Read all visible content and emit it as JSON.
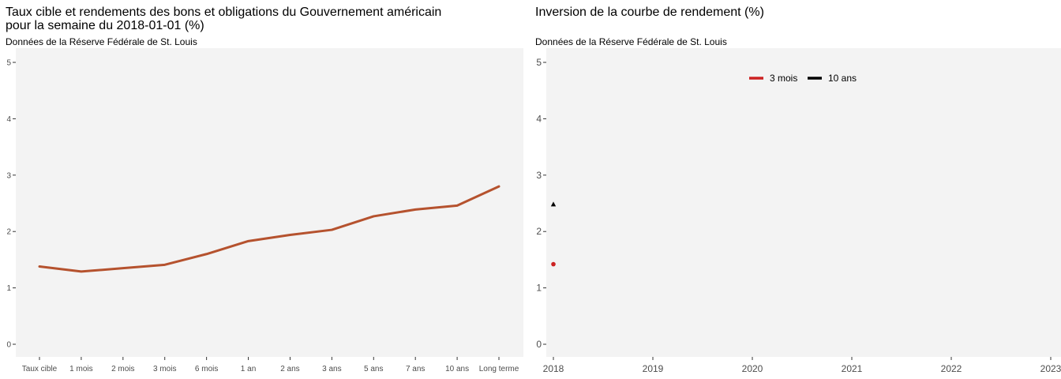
{
  "left": {
    "title_line1": "Taux cible et rendements des bons et obligations du Gouvernement américain",
    "title_line2": "pour la semaine du 2018-01-01 (%)",
    "subtitle": "Données de la Réserve Fédérale de St. Louis"
  },
  "right": {
    "title": "Inversion de la courbe de rendement (%)",
    "subtitle": "Données de la Réserve Fédérale de St. Louis"
  },
  "colors": {
    "panel_bg": "#f3f3f3",
    "left_line": "#b5522e",
    "three_month": "#cc2222",
    "ten_year": "#000000"
  },
  "chart_data": [
    {
      "type": "line",
      "title": "Taux cible et rendements des bons et obligations du Gouvernement américain pour la semaine du 2018-01-01 (%)",
      "subtitle": "Données de la Réserve Fédérale de St. Louis",
      "xlabel": "",
      "ylabel": "",
      "categories": [
        "Taux cible",
        "1 mois",
        "2 mois",
        "3 mois",
        "6 mois",
        "1 an",
        "2 ans",
        "3 ans",
        "5 ans",
        "7 ans",
        "10 ans",
        "Long terme"
      ],
      "values": [
        1.38,
        1.29,
        1.35,
        1.41,
        1.6,
        1.83,
        1.94,
        2.03,
        2.27,
        2.39,
        2.46,
        2.8
      ],
      "ylim": [
        0,
        5
      ],
      "yticks": [
        "0",
        "1",
        "2",
        "3",
        "4",
        "5"
      ],
      "grid": false
    },
    {
      "type": "scatter",
      "title": "Inversion de la courbe de rendement (%)",
      "subtitle": "Données de la Réserve Fédérale de St. Louis",
      "xlabel": "",
      "ylabel": "",
      "xlim": [
        2018,
        2023
      ],
      "ylim": [
        0,
        5
      ],
      "xticks": [
        "2018",
        "2019",
        "2020",
        "2021",
        "2022",
        "2023"
      ],
      "yticks": [
        "0",
        "1",
        "2",
        "3",
        "4",
        "5"
      ],
      "legend_position": "top-right",
      "series": [
        {
          "name": "3 mois",
          "x": [
            2018.0
          ],
          "y": [
            1.42
          ],
          "color": "#cc2222"
        },
        {
          "name": "10 ans",
          "x": [
            2018.0
          ],
          "y": [
            2.48
          ],
          "color": "#000000"
        }
      ],
      "grid": false
    }
  ]
}
